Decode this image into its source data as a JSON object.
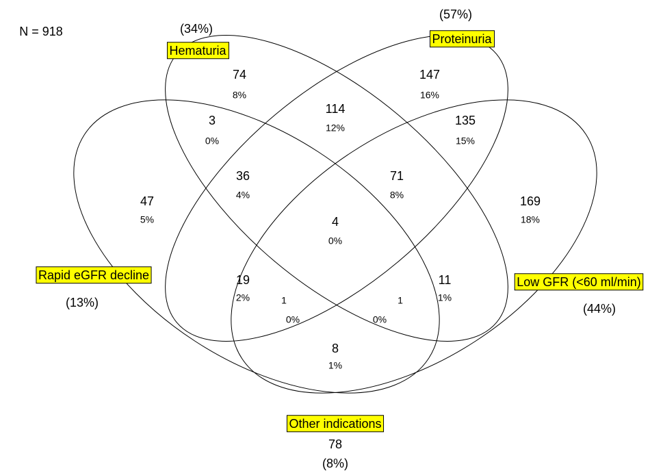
{
  "n_label": "N = 918",
  "sets": [
    {
      "label": "Hematuria",
      "percent": "(34%)"
    },
    {
      "label": "Proteinuria",
      "percent": "(57%)"
    },
    {
      "label": "Rapid eGFR decline",
      "percent": "(13%)"
    },
    {
      "label": "Low GFR (<60 ml/min)",
      "percent": "(44%)"
    }
  ],
  "regions": [
    {
      "count": "74",
      "percent": "8%"
    },
    {
      "count": "147",
      "percent": "16%"
    },
    {
      "count": "3",
      "percent": "0%"
    },
    {
      "count": "114",
      "percent": "12%"
    },
    {
      "count": "135",
      "percent": "15%"
    },
    {
      "count": "47",
      "percent": "5%"
    },
    {
      "count": "36",
      "percent": "4%"
    },
    {
      "count": "71",
      "percent": "8%"
    },
    {
      "count": "169",
      "percent": "18%"
    },
    {
      "count": "4",
      "percent": "0%"
    },
    {
      "count": "19",
      "percent": "2%"
    },
    {
      "count": "11",
      "percent": "1%"
    },
    {
      "count": "1",
      "percent": "0%"
    },
    {
      "count": "1",
      "percent": "0%"
    },
    {
      "count": "8",
      "percent": "1%"
    }
  ],
  "outside": {
    "label": "Other indications",
    "count": "78",
    "percent": "(8%)"
  }
}
